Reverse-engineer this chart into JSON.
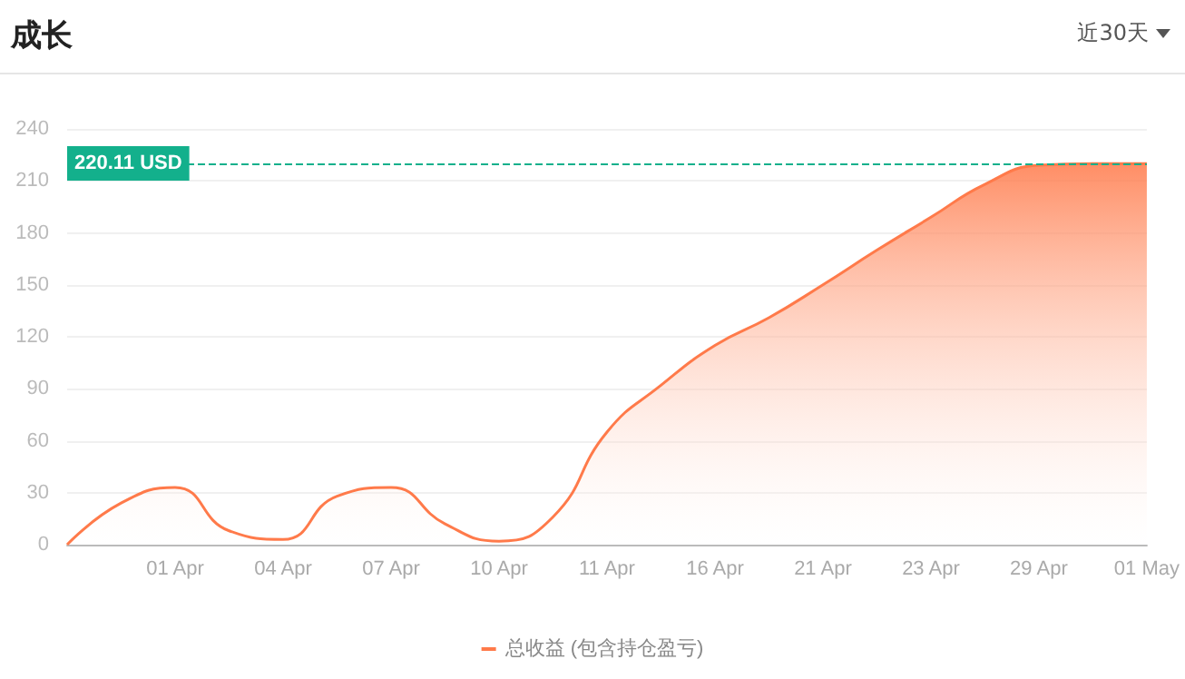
{
  "chart_data": {
    "type": "area",
    "title": "成长",
    "annotations": [
      "近30天"
    ],
    "categories": [
      null,
      null,
      "01 Apr",
      null,
      "04 Apr",
      null,
      "07 Apr",
      null,
      "10 Apr",
      null,
      "11 Apr",
      null,
      "16 Apr",
      null,
      "21 Apr",
      null,
      "23 Apr",
      null,
      "29 Apr",
      null,
      "01 May"
    ],
    "series": [
      {
        "name": "总收益 (包含持仓盈亏)",
        "color": "#ff7a4a",
        "values": [
          0,
          24,
          33,
          8,
          3,
          28,
          33,
          12,
          2,
          16,
          65,
          92,
          115,
          131,
          150,
          170,
          189,
          208,
          219,
          220,
          220
        ]
      }
    ],
    "ylim": [
      0,
      240
    ],
    "yticks": [
      0,
      30,
      60,
      90,
      120,
      150,
      180,
      210,
      240
    ],
    "ref_lines": [
      {
        "axis": "y",
        "value": 220.11,
        "label": "220.11 USD",
        "color": "#13b08c",
        "line_style": "dashed"
      }
    ],
    "grid": "y",
    "legend": "bottom",
    "marker": "none",
    "line_style": "solid"
  }
}
